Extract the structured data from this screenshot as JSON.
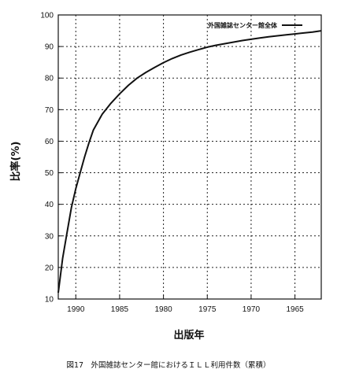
{
  "chart_data": {
    "type": "line",
    "title": "",
    "xlabel": "出版年",
    "ylabel": "比率(%)",
    "x_reversed": true,
    "xlim": [
      1992,
      1962
    ],
    "ylim": [
      10,
      100
    ],
    "x_ticks": [
      1990,
      1985,
      1980,
      1975,
      1970,
      1965
    ],
    "y_ticks": [
      10,
      20,
      30,
      40,
      50,
      60,
      70,
      80,
      90,
      100
    ],
    "grid": true,
    "legend_position": "top-right",
    "series": [
      {
        "name": "外国雑誌センター館全体",
        "color": "#111111",
        "x": [
          1992,
          1991.5,
          1991,
          1990.5,
          1990,
          1989.5,
          1989,
          1988.5,
          1988,
          1987,
          1986,
          1985,
          1984,
          1983,
          1982,
          1981,
          1980,
          1979,
          1978,
          1977,
          1976,
          1975,
          1974,
          1973,
          1972,
          1971,
          1970,
          1969,
          1968,
          1967,
          1966,
          1965,
          1964,
          1963,
          1962
        ],
        "y": [
          12,
          23,
          31,
          39,
          45,
          50,
          55,
          59.5,
          63.5,
          68.5,
          72,
          75,
          77.7,
          80,
          81.8,
          83.4,
          84.9,
          86.2,
          87.3,
          88.2,
          89,
          89.8,
          90.4,
          90.9,
          91.4,
          91.9,
          92.3,
          92.7,
          93.1,
          93.4,
          93.7,
          94,
          94.3,
          94.6,
          95
        ]
      }
    ]
  },
  "caption": "図17　外国雑誌センター館におけるＩＬＬ利用件数（累積）"
}
